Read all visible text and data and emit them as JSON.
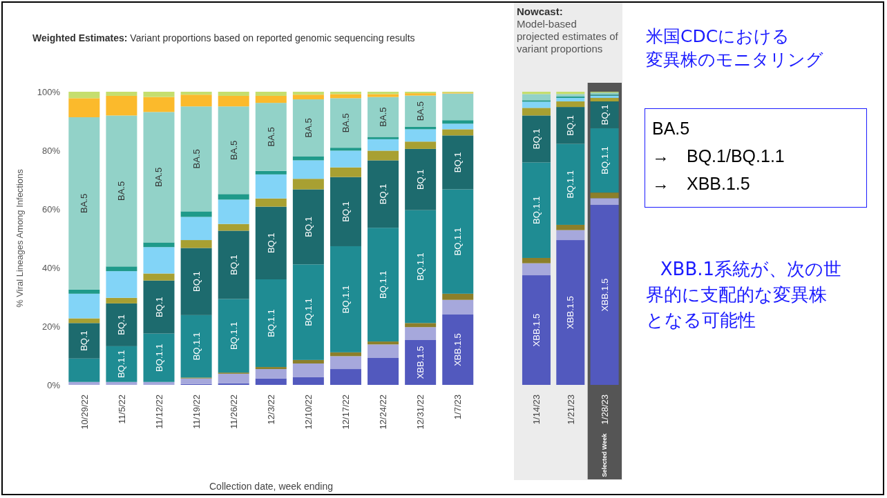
{
  "chart_data": [
    {
      "type": "bar",
      "stacked": true,
      "title": "Weighted Estimates:",
      "subtitle": "Variant proportions based on reported genomic sequencing results",
      "xlabel": "Collection date, week ending",
      "ylabel": "% Viral Lineages Among Infections",
      "categories": [
        "10/29/22",
        "11/5/22",
        "11/12/22",
        "11/19/22",
        "11/26/22",
        "12/3/22",
        "12/10/22",
        "12/17/22",
        "12/24/22",
        "12/31/22",
        "1/7/23"
      ],
      "ylim": [
        0,
        100
      ],
      "yticks": [
        {
          "value": 0,
          "label": "0%"
        },
        {
          "value": 20,
          "label": "20%"
        },
        {
          "value": 40,
          "label": "40%"
        },
        {
          "value": 60,
          "label": "60%"
        },
        {
          "value": 80,
          "label": "80%"
        },
        {
          "value": 100,
          "label": "100%"
        }
      ],
      "series": [
        {
          "color": "#5259be",
          "values": [
            0,
            0,
            0,
            0.3,
            0.5,
            2.2,
            2.6,
            5.4,
            9.3,
            15.3,
            24
          ],
          "value_labels": [
            null,
            null,
            null,
            null,
            null,
            null,
            null,
            null,
            null,
            "XBB.1.5",
            "XBB.1.5"
          ]
        },
        {
          "color": "#a6a8dc",
          "values": [
            1,
            1,
            1,
            1.9,
            3.3,
            3.2,
            4.7,
            4.4,
            4.5,
            4.4,
            5
          ]
        },
        {
          "color": "#8c7f2a",
          "values": [
            0,
            0,
            0,
            0.3,
            0.4,
            0.7,
            1.2,
            1.3,
            1,
            1.4,
            2.1
          ]
        },
        {
          "color": "#1f8c93",
          "values": [
            8,
            12.2,
            16.5,
            21.3,
            25.1,
            29.9,
            32.6,
            36.2,
            38.8,
            38.5,
            35.6
          ],
          "value_labels": [
            null,
            "BQ.1.1",
            "BQ.1.1",
            "BQ.1.1",
            "BQ.1.1",
            "BQ.1.1",
            "BQ.1.1",
            "BQ.1.1",
            "BQ.1.1",
            "BQ.1.1",
            "BQ.1.1"
          ]
        },
        {
          "color": "#1d6b6e",
          "values": [
            12.1,
            14.6,
            18.1,
            22.9,
            23.3,
            24.8,
            25.6,
            23.6,
            23,
            20.9,
            18.4
          ],
          "value_labels": [
            "BQ.1",
            "BQ.1",
            "BQ.1",
            "BQ.1",
            "BQ.1",
            "BQ.1",
            "BQ.1",
            "BQ.1",
            "BQ.1",
            "BQ.1",
            "BQ.1"
          ]
        },
        {
          "color": "#a8a032",
          "values": [
            1.6,
            1.9,
            2.4,
            2.7,
            2.3,
            2.8,
            3.6,
            3.3,
            3.3,
            2.5,
            2.1
          ]
        },
        {
          "color": "#82d4f7",
          "values": [
            8.4,
            9.1,
            9,
            7.9,
            8.3,
            8.2,
            6.3,
            5.7,
            3.9,
            4.2,
            1.9
          ]
        },
        {
          "color": "#1f9a8a",
          "values": [
            1.4,
            1.6,
            1.6,
            1.9,
            1.9,
            1.2,
            1.4,
            1,
            0.8,
            0.9,
            1.2
          ]
        },
        {
          "color": "#92d2c8",
          "values": [
            58.8,
            51.5,
            44.5,
            35.8,
            29.9,
            23.2,
            19.4,
            16.9,
            13.6,
            10.6,
            9.1
          ],
          "value_labels": [
            "BA.5",
            "BA.5",
            "BA.5",
            "BA.5",
            "BA.5",
            "BA.5",
            "BA.5",
            "BA.5",
            "BA.5",
            "BA.5",
            null
          ]
        },
        {
          "color": "#fbba2c",
          "values": [
            6.5,
            6.7,
            5.1,
            4,
            3.6,
            2.4,
            1.6,
            1.4,
            1,
            0.8,
            0.3
          ]
        },
        {
          "color": "#c5de6e",
          "values": [
            2.2,
            1.4,
            1.8,
            1,
            1.4,
            1.4,
            1,
            0.8,
            0.8,
            0.5,
            0.3
          ]
        }
      ]
    },
    {
      "type": "bar",
      "stacked": true,
      "title": "Nowcast:",
      "subtitle": "Model-based projected estimates of variant proportions",
      "tick_labels": "x",
      "categories": [
        "1/14/23",
        "1/21/23",
        "1/28/23"
      ],
      "ylim": [
        0,
        100
      ],
      "bands": [
        {
          "axis": "x",
          "from": "1/28/23",
          "to": "1/28/23",
          "label": "Selected Week",
          "color": "#555555"
        }
      ],
      "series": [
        {
          "color": "#5259be",
          "values": [
            37.4,
            49.4,
            61.4
          ],
          "value_labels": [
            "XBB.1.5",
            "XBB.1.5",
            "XBB.1.5"
          ]
        },
        {
          "color": "#a6a8dc",
          "values": [
            4.1,
            3.4,
            2.3
          ]
        },
        {
          "color": "#8c7f2a",
          "values": [
            1.8,
            1.8,
            1.9
          ]
        },
        {
          "color": "#1f8c93",
          "values": [
            32.6,
            27.6,
            22
          ],
          "value_labels": [
            "BQ.1.1",
            "BQ.1.1",
            "BQ.1.1"
          ]
        },
        {
          "color": "#1d6b6e",
          "values": [
            16,
            12.6,
            9.1
          ],
          "value_labels": [
            "BQ.1",
            "BQ.1",
            "BQ.1"
          ]
        },
        {
          "color": "#a8a032",
          "values": [
            2.6,
            1.9,
            1.2
          ]
        },
        {
          "color": "#82d4f7",
          "values": [
            2.1,
            1.2,
            0.8
          ]
        },
        {
          "color": "#1f9a8a",
          "values": [
            0.5,
            0.5,
            0.3
          ]
        },
        {
          "color": "#92d2c8",
          "values": [
            2.1,
            0.8,
            0.7
          ]
        },
        {
          "color": "#c5de6e",
          "values": [
            0.8,
            0.8,
            0.3
          ]
        }
      ]
    },
    {
      "type": "other",
      "title": "米国CDCにおける",
      "subtitle": "変異株のモニタリング",
      "annotations": [
        "BA.5",
        "→　BQ.1/BQ.1.1",
        "→　XBB.1.5",
        "XBB.1系統が、次の世界的に支配的な変異株となる可能性"
      ]
    }
  ]
}
